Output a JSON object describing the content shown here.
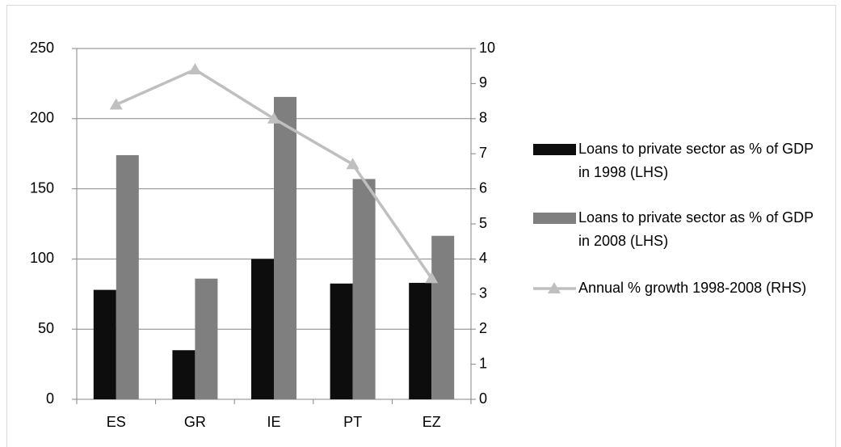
{
  "chart_data": {
    "type": "bar",
    "categories": [
      "ES",
      "GR",
      "IE",
      "PT",
      "EZ"
    ],
    "series": [
      {
        "name": "Loans to private sector as % of GDP in 1998 (LHS)",
        "color": "#0d0d0d",
        "values": [
          78,
          35,
          100,
          82.5,
          83
        ]
      },
      {
        "name": "Loans to private sector as % of GDP in 2008 (LHS)",
        "color": "#7f7f7f",
        "values": [
          174,
          86,
          215.5,
          157,
          116.5
        ]
      },
      {
        "name": "Annual % growth 1998-2008 (RHS)",
        "color": "#bfbfbf",
        "type": "line",
        "marker": "triangle",
        "axis": "y2",
        "values": [
          8.4,
          9.4,
          8.0,
          6.7,
          3.45
        ]
      }
    ],
    "ylim": [
      0,
      250
    ],
    "yticks": [
      0,
      50,
      100,
      150,
      200,
      250
    ],
    "y2lim": [
      0,
      10
    ],
    "y2ticks": [
      0,
      1,
      2,
      3,
      4,
      5,
      6,
      7,
      8,
      9,
      10
    ],
    "grid": true,
    "legend": "right"
  }
}
